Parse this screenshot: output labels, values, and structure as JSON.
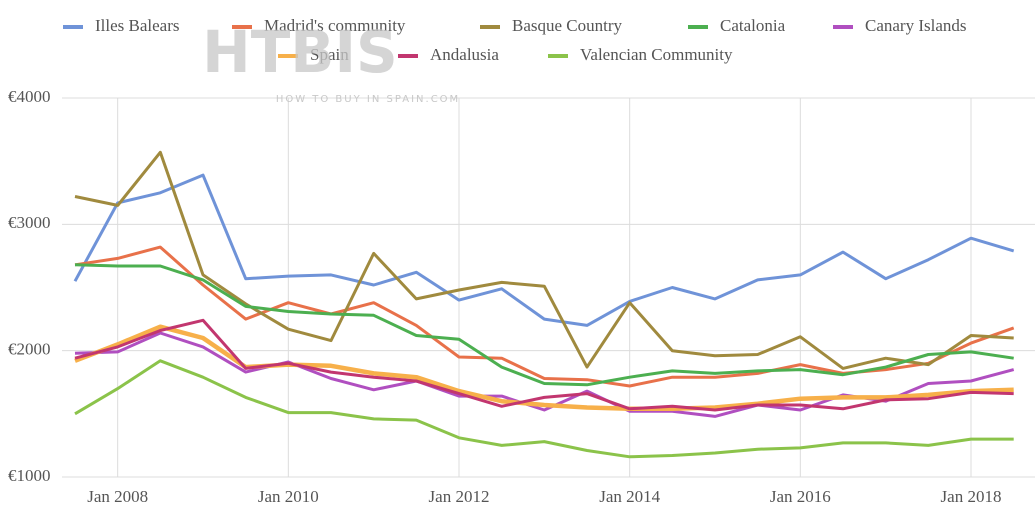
{
  "chart_data": {
    "type": "line",
    "watermark": {
      "logo": "HTBIS",
      "tagline": "HOW TO BUY IN SPAIN.COM"
    },
    "x": [
      "2007-07",
      "2008-01",
      "2008-07",
      "2009-01",
      "2009-07",
      "2010-01",
      "2010-07",
      "2011-01",
      "2011-07",
      "2012-01",
      "2012-07",
      "2013-01",
      "2013-07",
      "2014-01",
      "2014-07",
      "2015-01",
      "2015-07",
      "2016-01",
      "2016-07",
      "2017-01",
      "2017-07",
      "2018-01",
      "2018-07"
    ],
    "xlim": [
      "2007-07",
      "2018-10"
    ],
    "xticks": [
      {
        "value": "2008-01",
        "label": "Jan 2008"
      },
      {
        "value": "2010-01",
        "label": "Jan 2010"
      },
      {
        "value": "2012-01",
        "label": "Jan 2012"
      },
      {
        "value": "2014-01",
        "label": "Jan 2014"
      },
      {
        "value": "2016-01",
        "label": "Jan 2016"
      },
      {
        "value": "2018-01",
        "label": "Jan 2018"
      }
    ],
    "ylim": [
      1000,
      4000
    ],
    "yticks": [
      {
        "value": 1000,
        "label": "€1000"
      },
      {
        "value": 2000,
        "label": "€2000"
      },
      {
        "value": 3000,
        "label": "€3000"
      },
      {
        "value": 4000,
        "label": "€4000"
      }
    ],
    "grid": true,
    "legend": "top",
    "series": [
      {
        "name": "Illes Balears",
        "color": "#6f93d8",
        "values": [
          2550,
          3170,
          3250,
          3390,
          2570,
          2590,
          2600,
          2520,
          2620,
          2400,
          2490,
          2250,
          2200,
          2390,
          2500,
          2410,
          2560,
          2600,
          2780,
          2570,
          2720,
          2890,
          2790
        ]
      },
      {
        "name": "Madrid's community",
        "color": "#e8714a",
        "values": [
          2680,
          2730,
          2820,
          2520,
          2250,
          2380,
          2290,
          2380,
          2200,
          1950,
          1940,
          1780,
          1770,
          1720,
          1790,
          1790,
          1820,
          1890,
          1820,
          1850,
          1900,
          2060,
          2180
        ]
      },
      {
        "name": "Basque Country",
        "color": "#a08a3e",
        "values": [
          3220,
          3150,
          3570,
          2600,
          2370,
          2170,
          2080,
          2770,
          2410,
          2480,
          2540,
          2510,
          1870,
          2380,
          2000,
          1960,
          1970,
          2110,
          1860,
          1940,
          1890,
          2120,
          2100
        ]
      },
      {
        "name": "Catalonia",
        "color": "#4caf50",
        "values": [
          2680,
          2670,
          2670,
          2560,
          2350,
          2310,
          2290,
          2280,
          2120,
          2090,
          1870,
          1740,
          1730,
          1790,
          1840,
          1820,
          1840,
          1850,
          1810,
          1870,
          1970,
          1990,
          1940
        ]
      },
      {
        "name": "Canary Islands",
        "color": "#b04fc0",
        "values": [
          1980,
          1990,
          2140,
          2030,
          1830,
          1910,
          1780,
          1690,
          1760,
          1640,
          1640,
          1530,
          1680,
          1520,
          1520,
          1480,
          1570,
          1530,
          1650,
          1600,
          1740,
          1760,
          1850
        ]
      },
      {
        "name": "Spain",
        "color": "#f7b04a",
        "values": [
          1920,
          2050,
          2190,
          2100,
          1870,
          1890,
          1880,
          1820,
          1790,
          1680,
          1600,
          1570,
          1550,
          1540,
          1540,
          1550,
          1580,
          1620,
          1630,
          1630,
          1650,
          1680,
          1690
        ]
      },
      {
        "name": "Andalusia",
        "color": "#c2366f",
        "values": [
          1940,
          2030,
          2160,
          2240,
          1860,
          1900,
          1830,
          1790,
          1760,
          1660,
          1560,
          1630,
          1660,
          1540,
          1560,
          1530,
          1570,
          1570,
          1540,
          1610,
          1620,
          1670,
          1660
        ]
      },
      {
        "name": "Valencian Community",
        "color": "#8bc34a",
        "values": [
          1500,
          1700,
          1920,
          1790,
          1630,
          1510,
          1510,
          1460,
          1450,
          1310,
          1250,
          1280,
          1210,
          1160,
          1170,
          1190,
          1220,
          1230,
          1270,
          1270,
          1250,
          1300,
          1300
        ]
      }
    ]
  }
}
